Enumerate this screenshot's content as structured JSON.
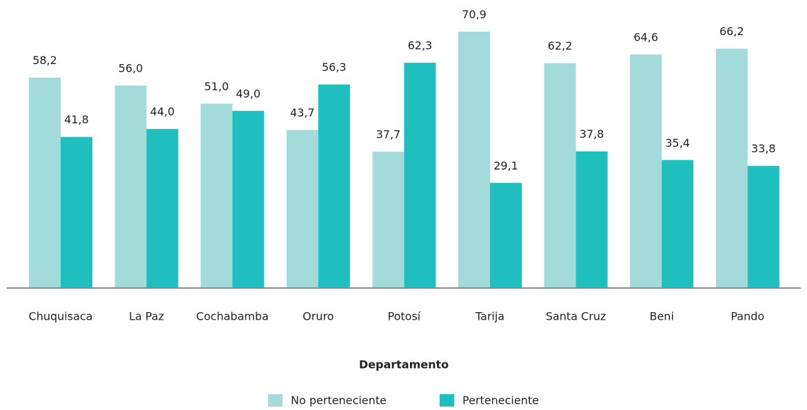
{
  "chart_data": {
    "type": "bar",
    "x_label": "Departamento",
    "categories": [
      "Chuquisaca",
      "La Paz",
      "Cochabamba",
      "Oruro",
      "Potosí",
      "Tarija",
      "Santa Cruz",
      "Beni",
      "Pando"
    ],
    "series": [
      {
        "name": "No perteneciente",
        "color": "#a3dbdb",
        "values": [
          58.2,
          56.0,
          51.0,
          43.7,
          37.7,
          70.9,
          62.2,
          64.6,
          66.2
        ],
        "value_labels": [
          "58,2",
          "56,0",
          "51,0",
          "43,7",
          "37,7",
          "70,9",
          "62,2",
          "64,6",
          "66,2"
        ]
      },
      {
        "name": "Perteneciente",
        "color": "#20bfbf",
        "values": [
          41.8,
          44.0,
          49.0,
          56.3,
          62.3,
          29.1,
          37.8,
          35.4,
          33.8
        ],
        "value_labels": [
          "41,8",
          "44,0",
          "49,0",
          "56,3",
          "62,3",
          "29,1",
          "37,8",
          "35,4",
          "33,8"
        ]
      }
    ],
    "legend": "bottom"
  }
}
